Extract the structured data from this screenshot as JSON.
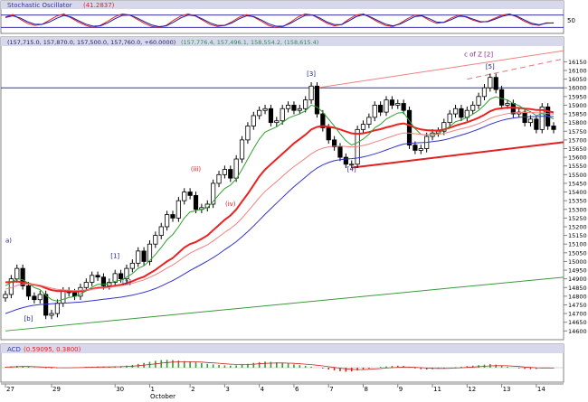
{
  "chart_data": [
    {
      "type": "line",
      "panel": "stochastic",
      "title": "Stochastic Oscillator",
      "reading": "(41.2837)",
      "y_ticks": [
        {
          "label": "50",
          "value": 50
        }
      ],
      "ylim": [
        0,
        100
      ],
      "grid": false,
      "series": [
        {
          "color": "#e02020",
          "values": [
            70,
            82,
            60,
            40,
            30,
            35,
            55,
            75,
            85,
            65,
            45,
            30,
            20,
            30,
            50,
            72,
            85,
            80,
            60,
            40,
            25,
            20,
            30,
            55,
            75,
            85,
            75,
            55,
            35,
            25,
            30,
            48,
            70,
            82,
            70,
            50,
            30,
            20,
            25,
            45,
            70,
            85,
            80,
            60,
            40,
            28,
            35,
            60,
            80,
            85,
            65,
            45,
            30,
            25,
            40,
            62,
            80,
            75,
            55,
            40,
            45,
            65,
            80,
            70,
            55,
            45,
            50,
            65,
            80,
            85,
            70,
            50,
            35,
            30,
            42,
            41
          ]
        },
        {
          "color": "#1a1aa6",
          "values": [
            68,
            76,
            66,
            48,
            36,
            35,
            46,
            64,
            78,
            70,
            52,
            36,
            26,
            28,
            42,
            62,
            78,
            80,
            66,
            48,
            32,
            24,
            28,
            45,
            66,
            80,
            76,
            60,
            42,
            30,
            30,
            42,
            62,
            76,
            72,
            56,
            38,
            26,
            26,
            40,
            60,
            78,
            80,
            66,
            46,
            34,
            34,
            52,
            72,
            82,
            70,
            52,
            36,
            28,
            36,
            54,
            72,
            76,
            62,
            46,
            44,
            58,
            74,
            72,
            60,
            48,
            48,
            60,
            74,
            82,
            74,
            56,
            40,
            33,
            40,
            42
          ]
        }
      ]
    },
    {
      "type": "candlestick",
      "panel": "price",
      "header_values": [
        "(157,715.0, 157,870.0, 157,500.0, 157,760.0, +60.0000)",
        "(157,776.4, 157,496.1, 158,554.2, (158,615.4)"
      ],
      "ylim": [
        14560,
        16230
      ],
      "grid": false,
      "y_ticks": [
        16150,
        16100,
        16050,
        16000,
        15950,
        15900,
        15850,
        15800,
        15750,
        15700,
        15650,
        15600,
        15550,
        15500,
        15450,
        15400,
        15350,
        15300,
        15250,
        15200,
        15150,
        15100,
        15050,
        15000,
        14950,
        14900,
        14850,
        14800,
        14750,
        14700,
        14650,
        14600
      ],
      "close": [
        14810,
        14900,
        14960,
        14860,
        14800,
        14780,
        14810,
        14690,
        14700,
        14760,
        14830,
        14820,
        14800,
        14850,
        14880,
        14920,
        14910,
        14860,
        14880,
        14930,
        14900,
        14960,
        14990,
        15060,
        15000,
        15100,
        15150,
        15200,
        15270,
        15250,
        15350,
        15400,
        15380,
        15300,
        15310,
        15330,
        15450,
        15500,
        15530,
        15480,
        15590,
        15700,
        15780,
        15840,
        15870,
        15880,
        15800,
        15810,
        15880,
        15900,
        15870,
        15880,
        15930,
        16010,
        15850,
        15770,
        15700,
        15660,
        15600,
        15560,
        15560,
        15760,
        15790,
        15830,
        15900,
        15860,
        15930,
        15900,
        15910,
        15870,
        15670,
        15640,
        15650,
        15720,
        15740,
        15750,
        15800,
        15850,
        15880,
        15830,
        15870,
        15900,
        15950,
        16000,
        16060,
        15990,
        15900,
        15910,
        15850,
        15860,
        15800,
        15820,
        15760,
        15890,
        15780,
        15760
      ],
      "ma_series": [
        {
          "color": "#ee2020",
          "values": [
            14880,
            14882,
            14885,
            14880,
            14872,
            14866,
            14860,
            14846,
            14835,
            14830,
            14830,
            14828,
            14826,
            14828,
            14834,
            14842,
            14848,
            14850,
            14854,
            14860,
            14866,
            14874,
            14886,
            14900,
            14912,
            14932,
            14952,
            14976,
            15000,
            15020,
            15050,
            15080,
            15100,
            15112,
            15130,
            15150,
            15180,
            15210,
            15240,
            15265,
            15300,
            15345,
            15390,
            15440,
            15490,
            15530,
            15560,
            15590,
            15620,
            15650,
            15680,
            15705,
            15730,
            15760,
            15775,
            15780,
            15776,
            15770,
            15760,
            15748,
            15738,
            15735,
            15738,
            15745,
            15755,
            15762,
            15772,
            15780,
            15790,
            15795,
            15785,
            15770,
            15760,
            15756,
            15754,
            15754,
            15760,
            15770,
            15782,
            15792,
            15802,
            15814,
            15828,
            15845,
            15865,
            15878,
            15882,
            15886,
            15885,
            15884,
            15880,
            15878,
            15872,
            15872,
            15866,
            15858
          ]
        },
        {
          "color": "#2fa02f",
          "values": [
            14860,
            14880,
            14900,
            14895,
            14875,
            14850,
            14838,
            14805,
            14780,
            14772,
            14782,
            14792,
            14798,
            14812,
            14830,
            14852,
            14868,
            14868,
            14872,
            14886,
            14892,
            14910,
            14930,
            14960,
            14975,
            15005,
            15040,
            15080,
            15125,
            15155,
            15200,
            15250,
            15285,
            15292,
            15300,
            15310,
            15345,
            15385,
            15420,
            15440,
            15475,
            15530,
            15590,
            15650,
            15705,
            15745,
            15760,
            15775,
            15800,
            15825,
            15838,
            15850,
            15868,
            15900,
            15890,
            15860,
            15820,
            15780,
            15735,
            15695,
            15670,
            15685,
            15705,
            15732,
            15770,
            15790,
            15820,
            15838,
            15855,
            15858,
            15810,
            15765,
            15732,
            15728,
            15732,
            15738,
            15755,
            15778,
            15805,
            15815,
            15830,
            15848,
            15870,
            15900,
            15935,
            15948,
            15938,
            15930,
            15910,
            15898,
            15875,
            15862,
            15840,
            15852,
            15836,
            15820
          ]
        },
        {
          "color": "#f08080",
          "values": [
            14840,
            14850,
            14862,
            14870,
            14870,
            14868,
            14864,
            14855,
            14846,
            14840,
            14836,
            14834,
            14832,
            14834,
            14836,
            14840,
            14844,
            14846,
            14850,
            14855,
            14860,
            14866,
            14874,
            14884,
            14894,
            14908,
            14924,
            14942,
            14962,
            14980,
            15002,
            15026,
            15048,
            15064,
            15080,
            15096,
            15118,
            15142,
            15168,
            15190,
            15216,
            15250,
            15288,
            15328,
            15368,
            15404,
            15432,
            15460,
            15490,
            15520,
            15546,
            15570,
            15594,
            15620,
            15640,
            15652,
            15660,
            15664,
            15664,
            15662,
            15660,
            15662,
            15668,
            15676,
            15688,
            15698,
            15710,
            15720,
            15732,
            15740,
            15740,
            15736,
            15732,
            15730,
            15730,
            15732,
            15738,
            15746,
            15756,
            15764,
            15772,
            15782,
            15794,
            15808,
            15824,
            15836,
            15844,
            15852,
            15856,
            15858,
            15858,
            15858,
            15856,
            15856,
            15852,
            15848
          ]
        },
        {
          "color": "#3333cc",
          "values": [
            14700,
            14712,
            14724,
            14734,
            14742,
            14748,
            14752,
            14754,
            14756,
            14758,
            14760,
            14762,
            14764,
            14766,
            14770,
            14774,
            14778,
            14782,
            14786,
            14790,
            14794,
            14800,
            14806,
            14814,
            14822,
            14832,
            14844,
            14858,
            14874,
            14890,
            14908,
            14928,
            14948,
            14966,
            14984,
            15002,
            15022,
            15044,
            15068,
            15090,
            15114,
            15142,
            15172,
            15204,
            15238,
            15272,
            15304,
            15336,
            15368,
            15400,
            15430,
            15458,
            15486,
            15514,
            15538,
            15556,
            15570,
            15580,
            15586,
            15590,
            15592,
            15596,
            15602,
            15610,
            15620,
            15630,
            15642,
            15654,
            15666,
            15676,
            15680,
            15682,
            15684,
            15686,
            15690,
            15694,
            15700,
            15708,
            15718,
            15728,
            15738,
            15750,
            15762,
            15776,
            15790,
            15802,
            15812,
            15820,
            15826,
            15830,
            15832,
            15834,
            15834,
            15836,
            15836,
            15834
          ]
        }
      ],
      "wave_labels": [
        {
          "label": "[b]",
          "bar": 4,
          "value": 14660,
          "color": "#1a1a8c"
        },
        {
          "label": "[1]",
          "bar": 19,
          "value": 15020,
          "color": "#1a1a8c"
        },
        {
          "label": "[2]",
          "bar": 21,
          "value": 14870,
          "color": "#1a1a8c"
        },
        {
          "label": "(iii)",
          "bar": 33,
          "value": 15520,
          "color": "#dd2222"
        },
        {
          "label": "(iv)",
          "bar": 39,
          "value": 15320,
          "color": "#dd2222"
        },
        {
          "label": "[3]",
          "bar": 53,
          "value": 16070,
          "color": "#1a1a8c"
        },
        {
          "label": "[4]",
          "bar": 60,
          "value": 15520,
          "color": "#1a1a8c"
        },
        {
          "label": "[5]",
          "bar": 84,
          "value": 16110,
          "color": "#1a1a8c"
        },
        {
          "label": "c of Z   [2]",
          "bar": 82,
          "value": 16180,
          "color": "#882288"
        },
        {
          "label": "a)",
          "bar": 0,
          "value": 15110,
          "color": "#1a1a8c"
        }
      ],
      "trend_lines": [
        {
          "color": "#e02020",
          "width": 2,
          "dashed": false,
          "from": {
            "bar": 60,
            "value": 15540
          },
          "to": {
            "bar": 100,
            "value": 15700
          }
        },
        {
          "color": "#f08080",
          "width": 1,
          "dashed": false,
          "from": {
            "bar": 54,
            "value": 16000
          },
          "to": {
            "bar": 100,
            "value": 16230
          }
        },
        {
          "color": "#d08080",
          "width": 1,
          "dashed": true,
          "from": {
            "bar": 80,
            "value": 16050
          },
          "to": {
            "bar": 100,
            "value": 16190
          }
        },
        {
          "color": "#3a9a3a",
          "width": 1,
          "dashed": false,
          "from": {
            "bar": 0,
            "value": 14600
          },
          "to": {
            "bar": 100,
            "value": 14920
          }
        }
      ],
      "horizontal_lines": [
        {
          "value": 16000,
          "color": "#3333aa"
        }
      ]
    },
    {
      "type": "bar",
      "panel": "macd",
      "title": "ACD",
      "header_values": [
        "(0.59095, 0.3800)"
      ],
      "ylim": [
        -1,
        1
      ],
      "grid": false,
      "values": [
        0.05,
        0.1,
        0.14,
        0.12,
        0.08,
        0.04,
        0.0,
        -0.04,
        -0.05,
        -0.04,
        -0.02,
        0.0,
        0.02,
        0.04,
        0.06,
        0.08,
        0.09,
        0.08,
        0.08,
        0.1,
        0.12,
        0.16,
        0.22,
        0.3,
        0.38,
        0.46,
        0.54,
        0.6,
        0.62,
        0.6,
        0.56,
        0.52,
        0.48,
        0.42,
        0.36,
        0.3,
        0.26,
        0.22,
        0.18,
        0.16,
        0.18,
        0.22,
        0.3,
        0.38,
        0.44,
        0.48,
        0.46,
        0.42,
        0.38,
        0.32,
        0.26,
        0.2,
        0.14,
        0.08,
        0.0,
        -0.06,
        -0.14,
        -0.22,
        -0.28,
        -0.32,
        -0.3,
        -0.22,
        -0.14,
        -0.06,
        0.0,
        0.06,
        0.1,
        0.14,
        0.16,
        0.14,
        0.04,
        -0.06,
        -0.12,
        -0.14,
        -0.12,
        -0.08,
        -0.04,
        0.0,
        0.04,
        0.08,
        0.12,
        0.16,
        0.2,
        0.24,
        0.28,
        0.24,
        0.16,
        0.08,
        0.0,
        -0.06,
        -0.1,
        -0.12,
        -0.1,
        -0.04,
        -0.02,
        -0.04
      ],
      "signal": [
        0.04,
        0.06,
        0.08,
        0.09,
        0.09,
        0.08,
        0.06,
        0.04,
        0.02,
        0.0,
        -0.01,
        -0.01,
        0.0,
        0.01,
        0.02,
        0.04,
        0.05,
        0.06,
        0.06,
        0.07,
        0.08,
        0.1,
        0.12,
        0.16,
        0.2,
        0.25,
        0.3,
        0.36,
        0.41,
        0.44,
        0.46,
        0.47,
        0.47,
        0.46,
        0.44,
        0.41,
        0.38,
        0.35,
        0.31,
        0.28,
        0.26,
        0.25,
        0.26,
        0.28,
        0.31,
        0.34,
        0.36,
        0.37,
        0.37,
        0.36,
        0.34,
        0.31,
        0.28,
        0.24,
        0.19,
        0.14,
        0.08,
        0.02,
        -0.04,
        -0.09,
        -0.13,
        -0.15,
        -0.15,
        -0.13,
        -0.1,
        -0.07,
        -0.03,
        0.0,
        0.03,
        0.05,
        0.05,
        0.03,
        0.0,
        -0.03,
        -0.05,
        -0.06,
        -0.06,
        -0.05,
        -0.03,
        -0.01,
        0.02,
        0.05,
        0.08,
        0.11,
        0.14,
        0.16,
        0.16,
        0.15,
        0.12,
        0.09,
        0.05,
        0.02,
        -0.01,
        -0.02,
        -0.02,
        -0.03
      ]
    }
  ],
  "x_axis": {
    "bars": 96,
    "ticks": [
      {
        "label": "27",
        "bar": 0
      },
      {
        "label": "29",
        "bar": 8
      },
      {
        "label": "30",
        "bar": 19
      },
      {
        "label": "1",
        "bar": 25
      },
      {
        "label": "2",
        "bar": 32
      },
      {
        "label": "3",
        "bar": 38
      },
      {
        "label": "4",
        "bar": 44
      },
      {
        "label": "6",
        "bar": 50
      },
      {
        "label": "7",
        "bar": 56
      },
      {
        "label": "8",
        "bar": 62
      },
      {
        "label": "9",
        "bar": 68
      },
      {
        "label": "11",
        "bar": 74
      },
      {
        "label": "12",
        "bar": 80
      },
      {
        "label": "13",
        "bar": 86
      },
      {
        "label": "14",
        "bar": 92
      }
    ],
    "month_label": "October"
  }
}
